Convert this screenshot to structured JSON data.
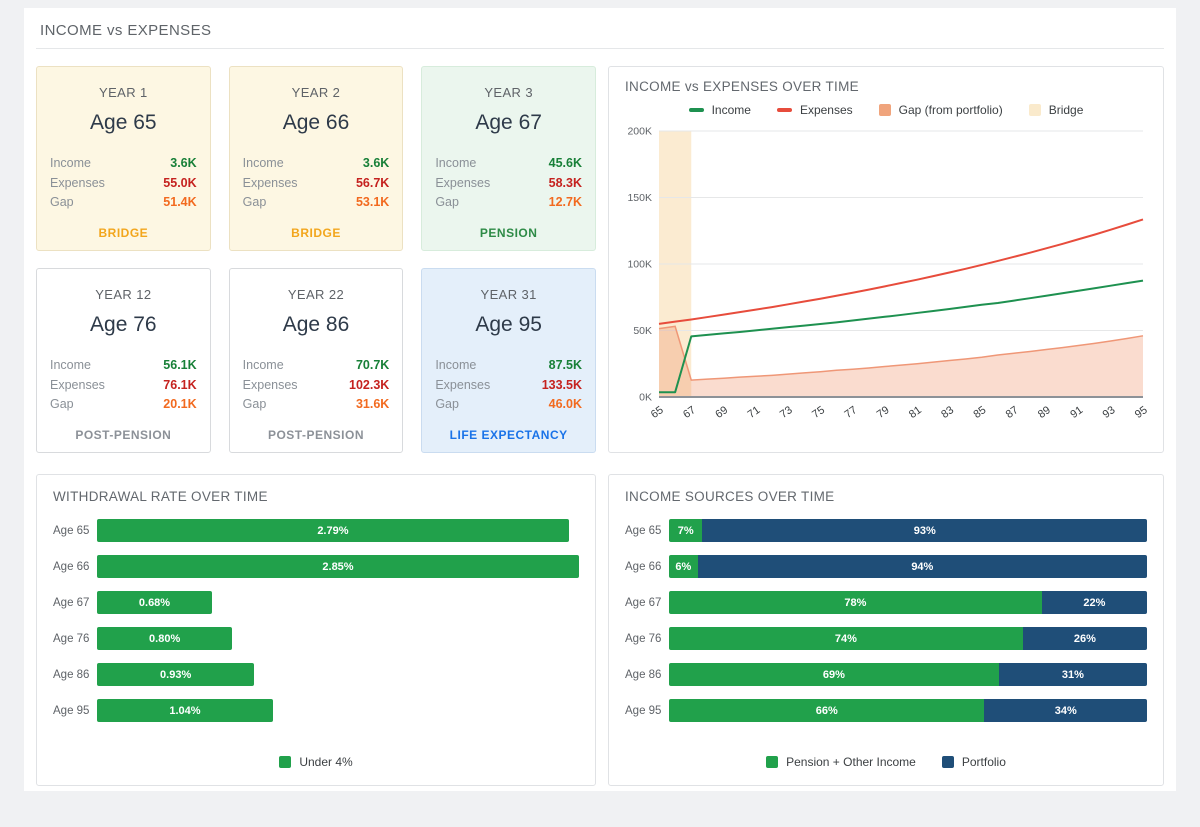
{
  "page": {
    "title": "INCOME vs EXPENSES"
  },
  "card_labels": {
    "income": "Income",
    "expenses": "Expenses",
    "gap": "Gap"
  },
  "cards": [
    {
      "year": "YEAR 1",
      "age": "Age 65",
      "income": "3.6K",
      "expenses": "55.0K",
      "gap": "51.4K",
      "phase": "BRIDGE",
      "variant": "bridge"
    },
    {
      "year": "YEAR 2",
      "age": "Age 66",
      "income": "3.6K",
      "expenses": "56.7K",
      "gap": "53.1K",
      "phase": "BRIDGE",
      "variant": "bridge"
    },
    {
      "year": "YEAR 3",
      "age": "Age 67",
      "income": "45.6K",
      "expenses": "58.3K",
      "gap": "12.7K",
      "phase": "PENSION",
      "variant": "pension"
    },
    {
      "year": "YEAR 12",
      "age": "Age 76",
      "income": "56.1K",
      "expenses": "76.1K",
      "gap": "20.1K",
      "phase": "POST-PENSION",
      "variant": "post"
    },
    {
      "year": "YEAR 22",
      "age": "Age 86",
      "income": "70.7K",
      "expenses": "102.3K",
      "gap": "31.6K",
      "phase": "POST-PENSION",
      "variant": "post"
    },
    {
      "year": "YEAR 31",
      "age": "Age 95",
      "income": "87.5K",
      "expenses": "133.5K",
      "gap": "46.0K",
      "phase": "LIFE EXPECTANCY",
      "variant": "life"
    }
  ],
  "chart_data": [
    {
      "type": "line",
      "title": "INCOME vs EXPENSES OVER TIME",
      "x": [
        65,
        66,
        67,
        68,
        69,
        70,
        71,
        72,
        73,
        74,
        75,
        76,
        77,
        78,
        79,
        80,
        81,
        82,
        83,
        84,
        85,
        86,
        87,
        88,
        89,
        90,
        91,
        92,
        93,
        94,
        95
      ],
      "xticks": [
        65,
        67,
        69,
        71,
        73,
        75,
        77,
        79,
        81,
        83,
        85,
        87,
        89,
        91,
        93,
        95
      ],
      "ylim": [
        0,
        200
      ],
      "ytick_values": [
        0,
        50,
        100,
        150,
        200
      ],
      "ytick_labels": [
        "0K",
        "50K",
        "100K",
        "150K",
        "200K"
      ],
      "unit": "K",
      "series": [
        {
          "name": "Income",
          "type": "line",
          "color": "#1e9150",
          "values": [
            3.6,
            3.6,
            45.6,
            46.7,
            47.8,
            48.9,
            50.1,
            51.3,
            52.5,
            53.7,
            54.9,
            56.1,
            57.5,
            58.9,
            60.3,
            61.7,
            63.2,
            64.7,
            66.2,
            67.8,
            69.4,
            70.7,
            72.5,
            74.3,
            76.1,
            78.0,
            79.9,
            81.8,
            83.7,
            85.6,
            87.5
          ]
        },
        {
          "name": "Expenses",
          "type": "line",
          "color": "#e74c3c",
          "values": [
            55.0,
            56.7,
            58.3,
            60.1,
            61.9,
            63.8,
            65.7,
            67.6,
            69.7,
            71.8,
            73.9,
            76.1,
            78.4,
            80.7,
            83.2,
            85.7,
            88.2,
            90.9,
            93.6,
            96.4,
            99.3,
            102.3,
            105.4,
            108.5,
            111.8,
            115.1,
            118.6,
            122.1,
            125.8,
            129.6,
            133.5
          ]
        },
        {
          "name": "Gap (from portfolio)",
          "type": "area",
          "color": "#ef9777",
          "fill": "rgba(238,140,95,0.30)",
          "swatch": "#f0a47c",
          "values": [
            51.4,
            53.1,
            12.7,
            13.4,
            14.1,
            14.9,
            15.6,
            16.3,
            17.2,
            18.1,
            19.0,
            20.1,
            20.9,
            21.8,
            22.9,
            24.0,
            25.0,
            26.2,
            27.4,
            28.6,
            29.9,
            31.6,
            32.9,
            34.2,
            35.7,
            37.1,
            38.7,
            40.3,
            42.1,
            44.0,
            46.0
          ]
        },
        {
          "name": "Bridge",
          "type": "band",
          "range": [
            65,
            67
          ],
          "fill": "rgba(243,197,124,0.35)",
          "swatch": "#faeacc"
        }
      ],
      "legend_position": "top"
    },
    {
      "type": "bar",
      "title": "WITHDRAWAL RATE OVER TIME",
      "categories": [
        "Age 65",
        "Age 66",
        "Age 67",
        "Age 76",
        "Age 86",
        "Age 95"
      ],
      "values": [
        2.79,
        2.85,
        0.68,
        0.8,
        0.93,
        1.04
      ],
      "labels": [
        "2.79%",
        "2.85%",
        "0.68%",
        "0.80%",
        "0.93%",
        "1.04%"
      ],
      "xmax": 2.85,
      "bar_color": "#21a14b",
      "legend": [
        {
          "label": "Under 4%",
          "color": "#21a14b"
        }
      ],
      "legend_position": "bottom"
    },
    {
      "type": "stacked-bar",
      "title": "INCOME SOURCES OVER TIME",
      "categories": [
        "Age 65",
        "Age 66",
        "Age 67",
        "Age 76",
        "Age 86",
        "Age 95"
      ],
      "series": [
        {
          "name": "Pension + Other Income",
          "color": "#21a14b",
          "values": [
            7,
            6,
            78,
            74,
            69,
            66
          ],
          "labels": [
            "7%",
            "6%",
            "78%",
            "74%",
            "69%",
            "66%"
          ]
        },
        {
          "name": "Portfolio",
          "color": "#1f4e78",
          "values": [
            93,
            94,
            22,
            26,
            31,
            34
          ],
          "labels": [
            "93%",
            "94%",
            "22%",
            "26%",
            "31%",
            "34%"
          ]
        }
      ],
      "legend_position": "bottom"
    }
  ]
}
